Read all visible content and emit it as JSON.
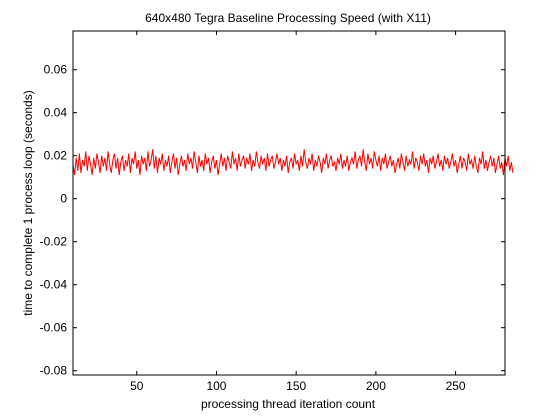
{
  "chart_data": {
    "type": "line",
    "title": "640x480 Tegra Baseline Processing Speed (with X11)",
    "xlabel": "processing thread iteration count",
    "ylabel": "time to complete 1 process loop (seconds)",
    "xlim": [
      10,
      281
    ],
    "ylim": [
      -0.082,
      0.078
    ],
    "xticks": [
      50,
      100,
      150,
      200,
      250
    ],
    "yticks": [
      -0.08,
      -0.06,
      -0.04,
      -0.02,
      0,
      0.02,
      0.04,
      0.06
    ],
    "yticklabels": [
      "-0.08",
      "-0.06",
      "-0.04",
      "-0.02",
      "0",
      "0.02",
      "0.04",
      "0.06"
    ],
    "grid": false,
    "legend": "none",
    "series": [
      {
        "color": "#ff0000",
        "x_start": 10,
        "x_step": 1,
        "values": [
          0.016,
          0.011,
          0.019,
          0.013,
          0.021,
          0.012,
          0.018,
          0.015,
          0.022,
          0.013,
          0.02,
          0.016,
          0.011,
          0.019,
          0.014,
          0.021,
          0.017,
          0.012,
          0.02,
          0.015,
          0.019,
          0.013,
          0.022,
          0.016,
          0.012,
          0.018,
          0.021,
          0.014,
          0.019,
          0.011,
          0.017,
          0.02,
          0.013,
          0.018,
          0.015,
          0.021,
          0.012,
          0.019,
          0.016,
          0.022,
          0.014,
          0.018,
          0.011,
          0.02,
          0.016,
          0.019,
          0.013,
          0.022,
          0.015,
          0.018,
          0.023,
          0.014,
          0.02,
          0.012,
          0.019,
          0.016,
          0.021,
          0.013,
          0.018,
          0.015,
          0.02,
          0.012,
          0.017,
          0.021,
          0.014,
          0.019,
          0.011,
          0.016,
          0.02,
          0.015,
          0.018,
          0.013,
          0.021,
          0.016,
          0.019,
          0.014,
          0.022,
          0.017,
          0.012,
          0.02,
          0.015,
          0.018,
          0.013,
          0.021,
          0.016,
          0.019,
          0.012,
          0.017,
          0.02,
          0.014,
          0.018,
          0.011,
          0.016,
          0.021,
          0.015,
          0.019,
          0.013,
          0.02,
          0.017,
          0.014,
          0.022,
          0.016,
          0.019,
          0.013,
          0.021,
          0.015,
          0.018,
          0.02,
          0.014,
          0.019,
          0.016,
          0.021,
          0.013,
          0.018,
          0.015,
          0.022,
          0.017,
          0.014,
          0.02,
          0.016,
          0.019,
          0.013,
          0.021,
          0.015,
          0.018,
          0.02,
          0.014,
          0.017,
          0.021,
          0.016,
          0.019,
          0.013,
          0.018,
          0.015,
          0.02,
          0.012,
          0.017,
          0.019,
          0.014,
          0.021,
          0.016,
          0.018,
          0.013,
          0.02,
          0.015,
          0.023,
          0.017,
          0.014,
          0.019,
          0.016,
          0.021,
          0.013,
          0.018,
          0.015,
          0.02,
          0.017,
          0.012,
          0.019,
          0.016,
          0.021,
          0.014,
          0.018,
          0.02,
          0.015,
          0.017,
          0.013,
          0.019,
          0.016,
          0.021,
          0.014,
          0.018,
          0.015,
          0.02,
          0.013,
          0.017,
          0.019,
          0.016,
          0.022,
          0.014,
          0.018,
          0.02,
          0.015,
          0.023,
          0.017,
          0.013,
          0.021,
          0.016,
          0.019,
          0.014,
          0.022,
          0.018,
          0.015,
          0.02,
          0.013,
          0.019,
          0.016,
          0.021,
          0.014,
          0.017,
          0.02,
          0.015,
          0.018,
          0.012,
          0.016,
          0.019,
          0.014,
          0.021,
          0.017,
          0.013,
          0.02,
          0.015,
          0.018,
          0.016,
          0.022,
          0.014,
          0.019,
          0.017,
          0.013,
          0.02,
          0.016,
          0.021,
          0.015,
          0.018,
          0.012,
          0.019,
          0.016,
          0.02,
          0.014,
          0.017,
          0.021,
          0.015,
          0.018,
          0.013,
          0.02,
          0.016,
          0.019,
          0.014,
          0.017,
          0.021,
          0.015,
          0.018,
          0.012,
          0.016,
          0.02,
          0.014,
          0.019,
          0.017,
          0.013,
          0.021,
          0.016,
          0.018,
          0.014,
          0.02,
          0.015,
          0.012,
          0.019,
          0.016,
          0.022,
          0.014,
          0.018,
          0.013,
          0.017,
          0.02,
          0.015,
          0.019,
          0.012,
          0.016,
          0.02,
          0.014,
          0.017,
          0.011,
          0.019,
          0.015,
          0.02,
          0.013,
          0.017,
          0.012
        ]
      }
    ]
  }
}
